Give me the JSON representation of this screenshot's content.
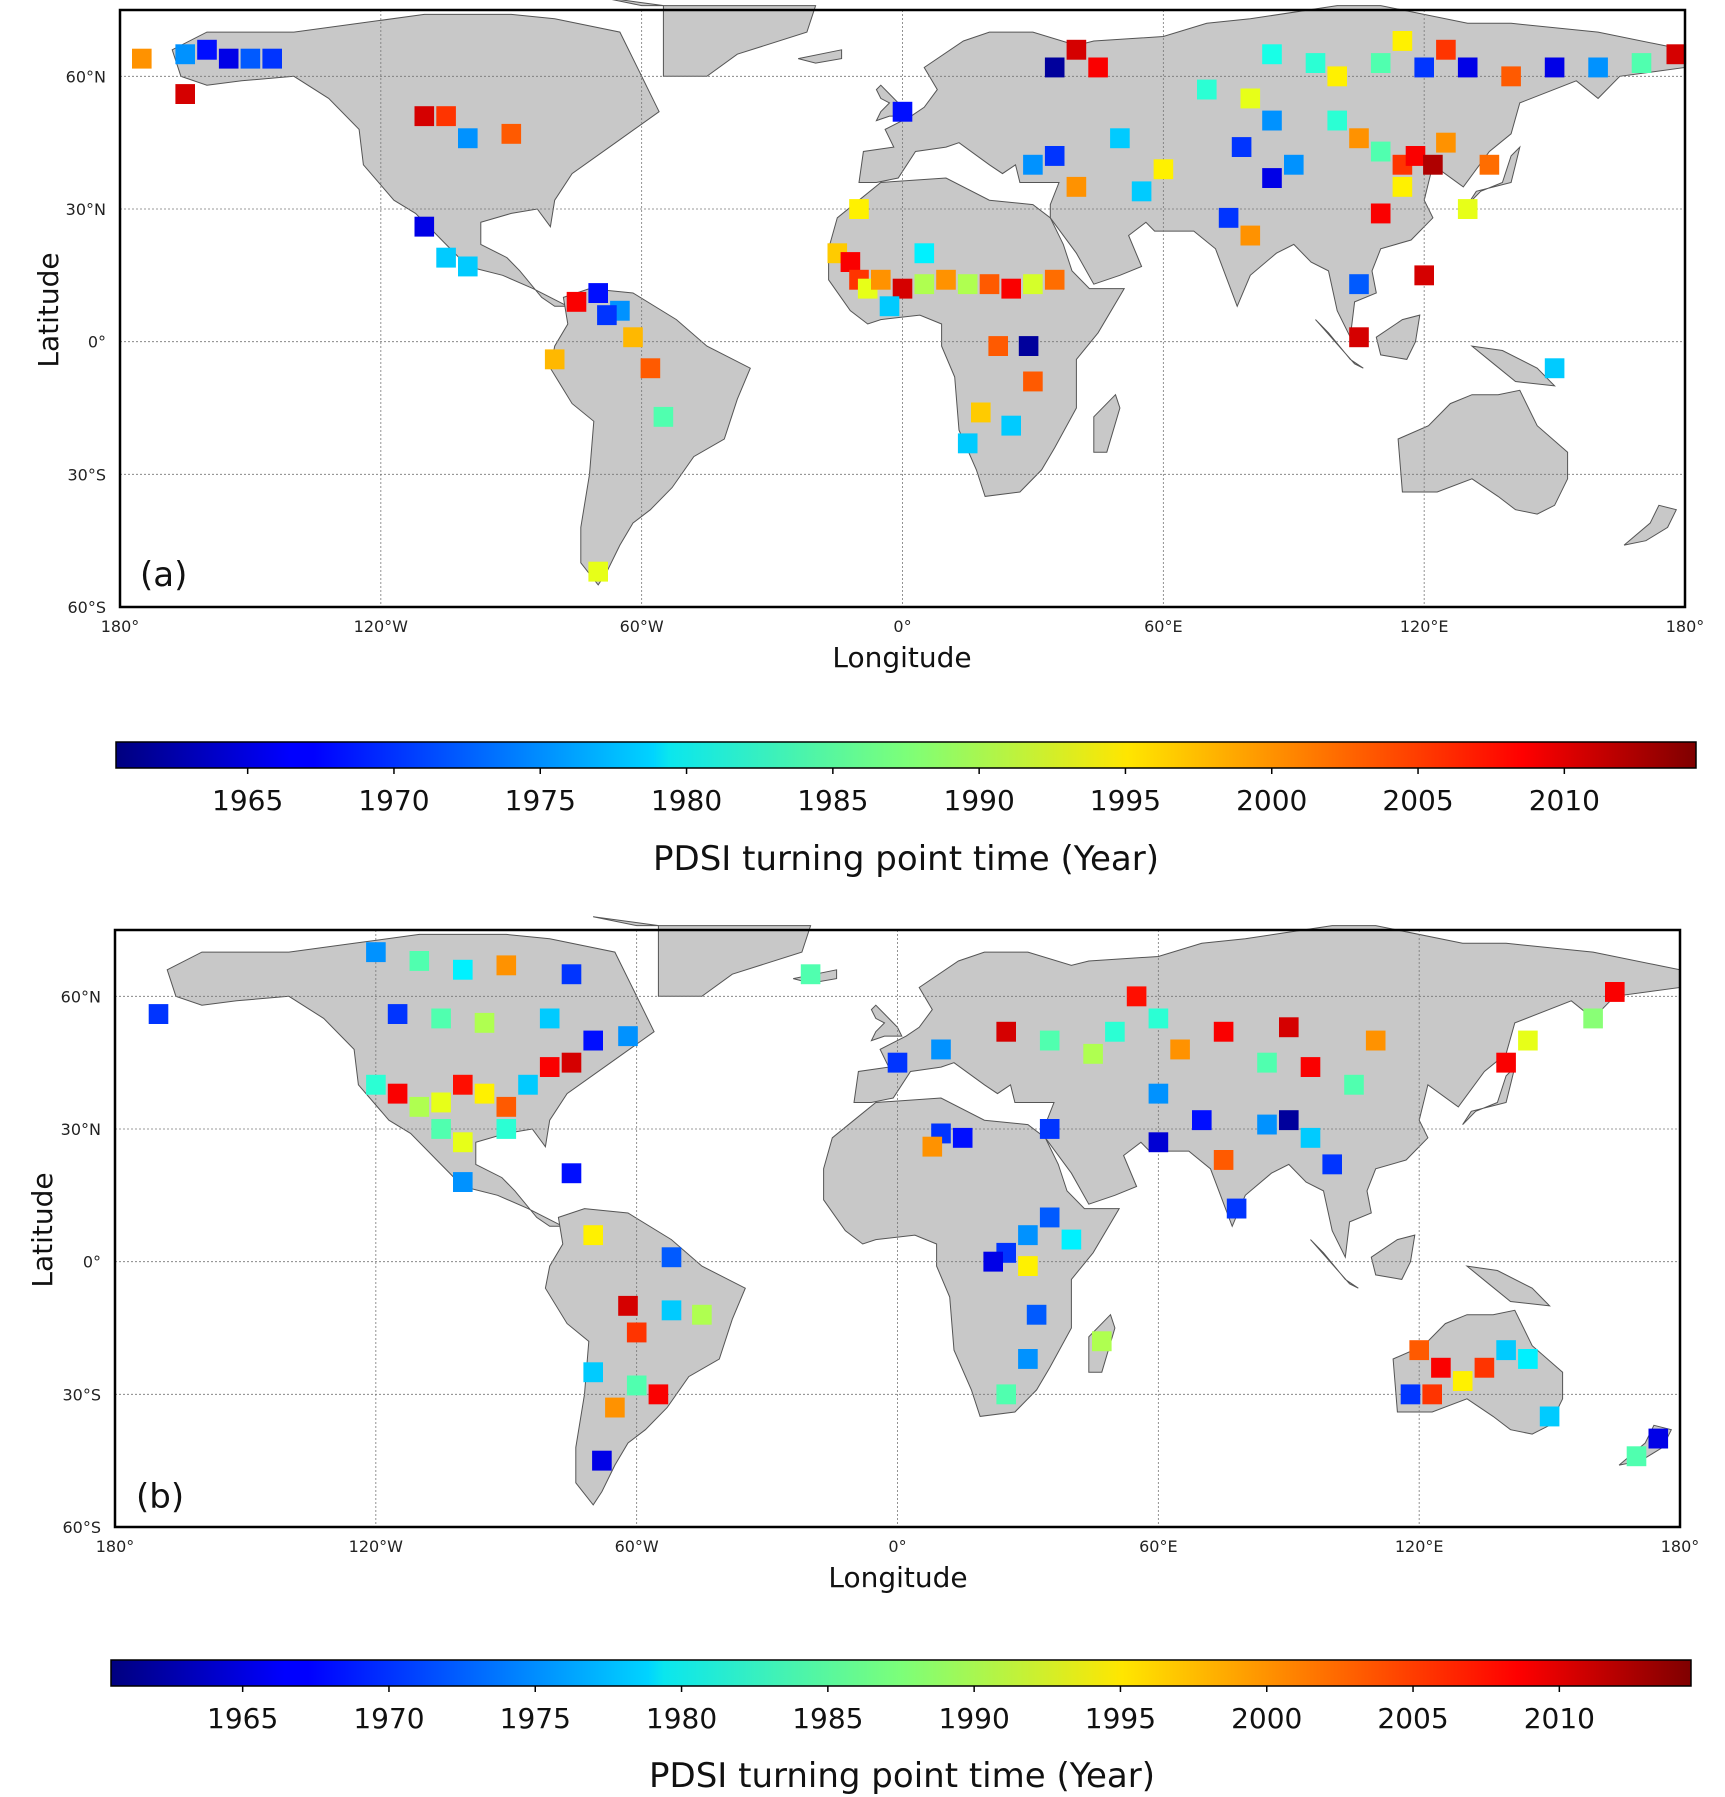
{
  "panels": [
    {
      "id": "a",
      "label": "(a)",
      "xlabel": "Longitude",
      "ylabel": "Latitude",
      "lon_ticks": [
        "180°",
        "120°W",
        "60°W",
        "0°",
        "60°E",
        "120°E",
        "180°"
      ],
      "lat_ticks": [
        "60°N",
        "30°N",
        "0°",
        "30°S",
        "60°S"
      ],
      "cells": [
        {
          "lon": -165,
          "lat": 65,
          "year": 1975
        },
        {
          "lon": -160,
          "lat": 66,
          "year": 1968
        },
        {
          "lon": -155,
          "lat": 64,
          "year": 1966
        },
        {
          "lon": -150,
          "lat": 64,
          "year": 1972
        },
        {
          "lon": -145,
          "lat": 64,
          "year": 1970
        },
        {
          "lon": -175,
          "lat": 64,
          "year": 2000
        },
        {
          "lon": -165,
          "lat": 56,
          "year": 2010
        },
        {
          "lon": -110,
          "lat": 51,
          "year": 2010
        },
        {
          "lon": -105,
          "lat": 51,
          "year": 2005
        },
        {
          "lon": -90,
          "lat": 47,
          "year": 2003
        },
        {
          "lon": -100,
          "lat": 46,
          "year": 1975
        },
        {
          "lon": -110,
          "lat": 26,
          "year": 1966
        },
        {
          "lon": -105,
          "lat": 19,
          "year": 1978
        },
        {
          "lon": -100,
          "lat": 17,
          "year": 1978
        },
        {
          "lon": -75,
          "lat": 9,
          "year": 2008
        },
        {
          "lon": -70,
          "lat": 11,
          "year": 1968
        },
        {
          "lon": -65,
          "lat": 7,
          "year": 1975
        },
        {
          "lon": -68,
          "lat": 6,
          "year": 1970
        },
        {
          "lon": -80,
          "lat": -4,
          "year": 1998
        },
        {
          "lon": -62,
          "lat": 1,
          "year": 1998
        },
        {
          "lon": -58,
          "lat": -6,
          "year": 2003
        },
        {
          "lon": -55,
          "lat": -17,
          "year": 1985
        },
        {
          "lon": -70,
          "lat": -52,
          "year": 1993
        },
        {
          "lon": -10,
          "lat": 30,
          "year": 1995
        },
        {
          "lon": -15,
          "lat": 20,
          "year": 1997
        },
        {
          "lon": -12,
          "lat": 18,
          "year": 2008
        },
        {
          "lon": -10,
          "lat": 14,
          "year": 2005
        },
        {
          "lon": -8,
          "lat": 12,
          "year": 1993
        },
        {
          "lon": -5,
          "lat": 14,
          "year": 2000
        },
        {
          "lon": 0,
          "lat": 12,
          "year": 2010
        },
        {
          "lon": 5,
          "lat": 13,
          "year": 1990
        },
        {
          "lon": 10,
          "lat": 14,
          "year": 2000
        },
        {
          "lon": 15,
          "lat": 13,
          "year": 1990
        },
        {
          "lon": 20,
          "lat": 13,
          "year": 2003
        },
        {
          "lon": 25,
          "lat": 12,
          "year": 2008
        },
        {
          "lon": 30,
          "lat": 13,
          "year": 1992
        },
        {
          "lon": 35,
          "lat": 14,
          "year": 2002
        },
        {
          "lon": 5,
          "lat": 20,
          "year": 1980
        },
        {
          "lon": -3,
          "lat": 8,
          "year": 1978
        },
        {
          "lon": 22,
          "lat": -1,
          "year": 2003
        },
        {
          "lon": 29,
          "lat": -1,
          "year": 1962
        },
        {
          "lon": 30,
          "lat": -9,
          "year": 2003
        },
        {
          "lon": 18,
          "lat": -16,
          "year": 1997
        },
        {
          "lon": 25,
          "lat": -19,
          "year": 1978
        },
        {
          "lon": 15,
          "lat": -23,
          "year": 1978
        },
        {
          "lon": 35,
          "lat": 62,
          "year": 1962
        },
        {
          "lon": 40,
          "lat": 66,
          "year": 2010
        },
        {
          "lon": 45,
          "lat": 62,
          "year": 2008
        },
        {
          "lon": 0,
          "lat": 52,
          "year": 1968
        },
        {
          "lon": 35,
          "lat": 42,
          "year": 1970
        },
        {
          "lon": 30,
          "lat": 40,
          "year": 1975
        },
        {
          "lon": 40,
          "lat": 35,
          "year": 2000
        },
        {
          "lon": 55,
          "lat": 34,
          "year": 1978
        },
        {
          "lon": 60,
          "lat": 39,
          "year": 1995
        },
        {
          "lon": 50,
          "lat": 46,
          "year": 1978
        },
        {
          "lon": 70,
          "lat": 57,
          "year": 1983
        },
        {
          "lon": 80,
          "lat": 55,
          "year": 1993
        },
        {
          "lon": 85,
          "lat": 50,
          "year": 1975
        },
        {
          "lon": 78,
          "lat": 44,
          "year": 1970
        },
        {
          "lon": 85,
          "lat": 37,
          "year": 1966
        },
        {
          "lon": 90,
          "lat": 40,
          "year": 1975
        },
        {
          "lon": 75,
          "lat": 28,
          "year": 1970
        },
        {
          "lon": 80,
          "lat": 24,
          "year": 2000
        },
        {
          "lon": 100,
          "lat": 50,
          "year": 1983
        },
        {
          "lon": 105,
          "lat": 46,
          "year": 2000
        },
        {
          "lon": 110,
          "lat": 43,
          "year": 1985
        },
        {
          "lon": 115,
          "lat": 40,
          "year": 2005
        },
        {
          "lon": 118,
          "lat": 42,
          "year": 2008
        },
        {
          "lon": 122,
          "lat": 40,
          "year": 2012
        },
        {
          "lon": 115,
          "lat": 35,
          "year": 1995
        },
        {
          "lon": 110,
          "lat": 29,
          "year": 2008
        },
        {
          "lon": 125,
          "lat": 45,
          "year": 2000
        },
        {
          "lon": 135,
          "lat": 40,
          "year": 2002
        },
        {
          "lon": 130,
          "lat": 30,
          "year": 1993
        },
        {
          "lon": 105,
          "lat": 13,
          "year": 1972
        },
        {
          "lon": 120,
          "lat": 15,
          "year": 2010
        },
        {
          "lon": 105,
          "lat": 1,
          "year": 2010
        },
        {
          "lon": 150,
          "lat": -6,
          "year": 1978
        },
        {
          "lon": 95,
          "lat": 63,
          "year": 1983
        },
        {
          "lon": 100,
          "lat": 60,
          "year": 1995
        },
        {
          "lon": 110,
          "lat": 63,
          "year": 1985
        },
        {
          "lon": 120,
          "lat": 62,
          "year": 1970
        },
        {
          "lon": 130,
          "lat": 62,
          "year": 1966
        },
        {
          "lon": 140,
          "lat": 60,
          "year": 2003
        },
        {
          "lon": 150,
          "lat": 62,
          "year": 1966
        },
        {
          "lon": 160,
          "lat": 62,
          "year": 1975
        },
        {
          "lon": 170,
          "lat": 63,
          "year": 1985
        },
        {
          "lon": 178,
          "lat": 65,
          "year": 2010
        },
        {
          "lon": 85,
          "lat": 65,
          "year": 1982
        },
        {
          "lon": 115,
          "lat": 68,
          "year": 1995
        },
        {
          "lon": 125,
          "lat": 66,
          "year": 2005
        }
      ]
    },
    {
      "id": "b",
      "label": "(b)",
      "xlabel": "Longitude",
      "ylabel": "Latitude",
      "lon_ticks": [
        "180°",
        "120°W",
        "60°W",
        "0°",
        "60°E",
        "120°E",
        "180°"
      ],
      "lat_ticks": [
        "60°N",
        "30°N",
        "0°",
        "30°S",
        "60°S"
      ],
      "cells": [
        {
          "lon": -170,
          "lat": 56,
          "year": 1970
        },
        {
          "lon": -120,
          "lat": 70,
          "year": 1975
        },
        {
          "lon": -110,
          "lat": 68,
          "year": 1985
        },
        {
          "lon": -100,
          "lat": 66,
          "year": 1980
        },
        {
          "lon": -90,
          "lat": 67,
          "year": 2000
        },
        {
          "lon": -75,
          "lat": 65,
          "year": 1970
        },
        {
          "lon": -115,
          "lat": 56,
          "year": 1970
        },
        {
          "lon": -105,
          "lat": 55,
          "year": 1985
        },
        {
          "lon": -95,
          "lat": 54,
          "year": 1990
        },
        {
          "lon": -80,
          "lat": 55,
          "year": 1978
        },
        {
          "lon": -70,
          "lat": 50,
          "year": 1968
        },
        {
          "lon": -62,
          "lat": 51,
          "year": 1975
        },
        {
          "lon": -120,
          "lat": 40,
          "year": 1983
        },
        {
          "lon": -115,
          "lat": 38,
          "year": 2008
        },
        {
          "lon": -110,
          "lat": 35,
          "year": 1990
        },
        {
          "lon": -105,
          "lat": 36,
          "year": 1993
        },
        {
          "lon": -100,
          "lat": 40,
          "year": 2007
        },
        {
          "lon": -95,
          "lat": 38,
          "year": 1995
        },
        {
          "lon": -90,
          "lat": 35,
          "year": 2003
        },
        {
          "lon": -85,
          "lat": 40,
          "year": 1978
        },
        {
          "lon": -80,
          "lat": 44,
          "year": 2008
        },
        {
          "lon": -75,
          "lat": 45,
          "year": 2010
        },
        {
          "lon": -105,
          "lat": 30,
          "year": 1985
        },
        {
          "lon": -100,
          "lat": 27,
          "year": 1993
        },
        {
          "lon": -90,
          "lat": 30,
          "year": 1983
        },
        {
          "lon": -100,
          "lat": 18,
          "year": 1975
        },
        {
          "lon": -75,
          "lat": 20,
          "year": 1968
        },
        {
          "lon": -70,
          "lat": 6,
          "year": 1995
        },
        {
          "lon": -52,
          "lat": 1,
          "year": 1972
        },
        {
          "lon": -62,
          "lat": -10,
          "year": 2010
        },
        {
          "lon": -60,
          "lat": -16,
          "year": 2005
        },
        {
          "lon": -52,
          "lat": -11,
          "year": 1978
        },
        {
          "lon": -45,
          "lat": -12,
          "year": 1990
        },
        {
          "lon": -70,
          "lat": -25,
          "year": 1978
        },
        {
          "lon": -60,
          "lat": -28,
          "year": 1985
        },
        {
          "lon": -55,
          "lat": -30,
          "year": 2008
        },
        {
          "lon": -65,
          "lat": -33,
          "year": 2000
        },
        {
          "lon": -68,
          "lat": -45,
          "year": 1966
        },
        {
          "lon": -20,
          "lat": 65,
          "year": 1985
        },
        {
          "lon": 10,
          "lat": 29,
          "year": 1970
        },
        {
          "lon": 15,
          "lat": 28,
          "year": 1968
        },
        {
          "lon": 35,
          "lat": 30,
          "year": 1970
        },
        {
          "lon": 8,
          "lat": 26,
          "year": 2000
        },
        {
          "lon": 25,
          "lat": 2,
          "year": 1970
        },
        {
          "lon": 22,
          "lat": 0,
          "year": 1966
        },
        {
          "lon": 30,
          "lat": 6,
          "year": 1975
        },
        {
          "lon": 35,
          "lat": 10,
          "year": 1972
        },
        {
          "lon": 40,
          "lat": 5,
          "year": 1980
        },
        {
          "lon": 30,
          "lat": -1,
          "year": 1995
        },
        {
          "lon": 32,
          "lat": -12,
          "year": 1972
        },
        {
          "lon": 30,
          "lat": -22,
          "year": 1975
        },
        {
          "lon": 47,
          "lat": -18,
          "year": 1990
        },
        {
          "lon": 25,
          "lat": -30,
          "year": 1985
        },
        {
          "lon": 0,
          "lat": 45,
          "year": 1970
        },
        {
          "lon": 10,
          "lat": 48,
          "year": 1975
        },
        {
          "lon": 25,
          "lat": 52,
          "year": 2010
        },
        {
          "lon": 35,
          "lat": 50,
          "year": 1985
        },
        {
          "lon": 45,
          "lat": 47,
          "year": 1990
        },
        {
          "lon": 50,
          "lat": 52,
          "year": 1983
        },
        {
          "lon": 55,
          "lat": 60,
          "year": 2007
        },
        {
          "lon": 60,
          "lat": 55,
          "year": 1983
        },
        {
          "lon": 65,
          "lat": 48,
          "year": 2000
        },
        {
          "lon": 75,
          "lat": 52,
          "year": 2008
        },
        {
          "lon": 90,
          "lat": 53,
          "year": 2010
        },
        {
          "lon": 85,
          "lat": 45,
          "year": 1985
        },
        {
          "lon": 60,
          "lat": 38,
          "year": 1975
        },
        {
          "lon": 70,
          "lat": 32,
          "year": 1968
        },
        {
          "lon": 85,
          "lat": 31,
          "year": 1975
        },
        {
          "lon": 90,
          "lat": 32,
          "year": 1962
        },
        {
          "lon": 95,
          "lat": 28,
          "year": 1978
        },
        {
          "lon": 100,
          "lat": 22,
          "year": 1970
        },
        {
          "lon": 78,
          "lat": 12,
          "year": 1970
        },
        {
          "lon": 75,
          "lat": 23,
          "year": 2003
        },
        {
          "lon": 105,
          "lat": 40,
          "year": 1985
        },
        {
          "lon": 110,
          "lat": 50,
          "year": 2000
        },
        {
          "lon": 95,
          "lat": 44,
          "year": 2008
        },
        {
          "lon": 140,
          "lat": 45,
          "year": 2008
        },
        {
          "lon": 145,
          "lat": 50,
          "year": 1993
        },
        {
          "lon": 165,
          "lat": 61,
          "year": 2008
        },
        {
          "lon": 160,
          "lat": 55,
          "year": 1988
        },
        {
          "lon": 60,
          "lat": 27,
          "year": 1965
        },
        {
          "lon": 120,
          "lat": -20,
          "year": 2003
        },
        {
          "lon": 125,
          "lat": -24,
          "year": 2008
        },
        {
          "lon": 130,
          "lat": -27,
          "year": 1995
        },
        {
          "lon": 135,
          "lat": -24,
          "year": 2005
        },
        {
          "lon": 140,
          "lat": -20,
          "year": 1978
        },
        {
          "lon": 145,
          "lat": -22,
          "year": 1980
        },
        {
          "lon": 150,
          "lat": -35,
          "year": 1978
        },
        {
          "lon": 118,
          "lat": -30,
          "year": 1970
        },
        {
          "lon": 123,
          "lat": -30,
          "year": 2005
        },
        {
          "lon": 175,
          "lat": -40,
          "year": 1966
        },
        {
          "lon": 170,
          "lat": -44,
          "year": 1985
        }
      ]
    }
  ],
  "colorbars": [
    {
      "label": "PDSI turning point time (Year)",
      "min": 1960.5,
      "max": 2014.5,
      "ticks": [
        "1965",
        "1970",
        "1975",
        "1980",
        "1985",
        "1990",
        "1995",
        "2000",
        "2005",
        "2010"
      ]
    },
    {
      "label": "PDSI turning point time (Year)",
      "min": 1960.5,
      "max": 2014.5,
      "ticks": [
        "1965",
        "1970",
        "1975",
        "1980",
        "1985",
        "1990",
        "1995",
        "2000",
        "2005",
        "2010"
      ]
    }
  ],
  "colormap": "jet"
}
